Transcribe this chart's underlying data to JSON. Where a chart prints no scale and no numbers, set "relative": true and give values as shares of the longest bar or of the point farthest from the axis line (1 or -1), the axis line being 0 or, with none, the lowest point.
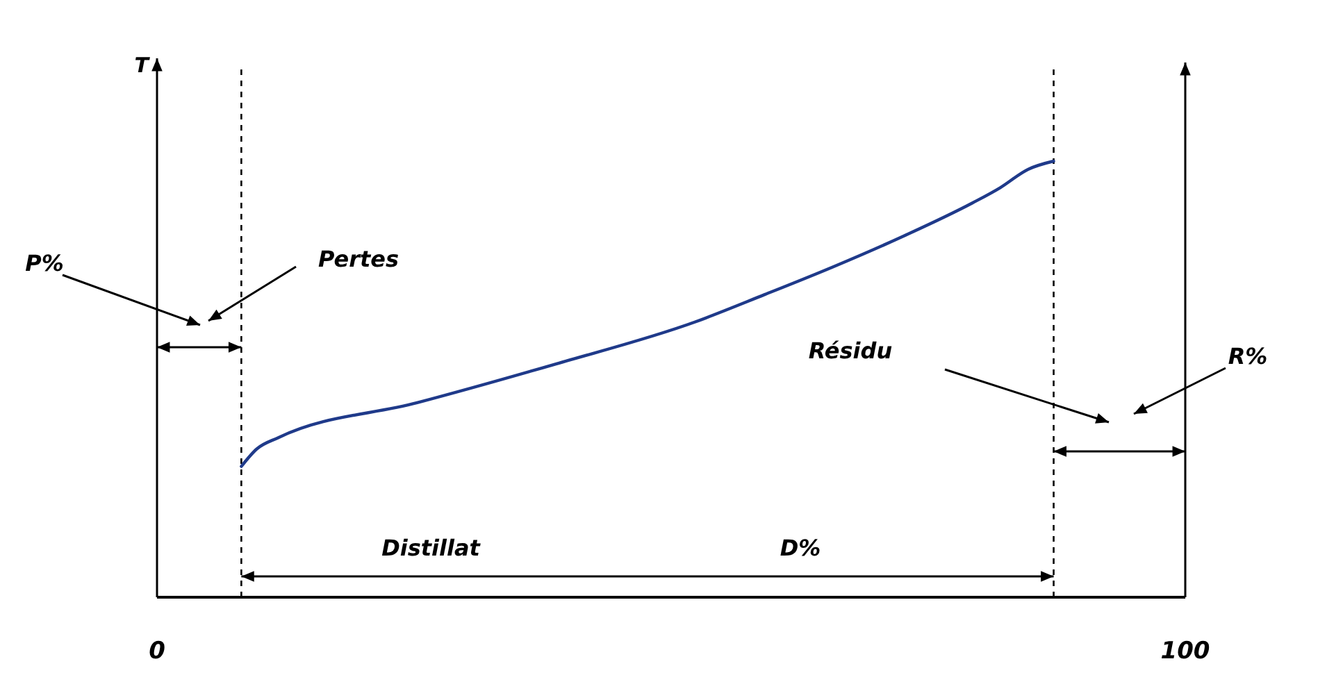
{
  "chart_data": {
    "type": "line",
    "ylabel": "T",
    "relative": true,
    "xlim": [
      0,
      100
    ],
    "xticks": [
      0,
      100
    ],
    "line_style": "solid",
    "marker": "none",
    "series": [
      {
        "color": "#1f3a8a",
        "x": [
          8.2,
          9.7,
          11.8,
          25.3,
          38.8,
          52.3,
          59.1,
          65.8,
          72.6,
          79.3,
          82.0,
          84.7,
          87.2
        ],
        "values": [
          0.3,
          0.34,
          0.366,
          0.446,
          0.535,
          0.631,
          0.694,
          0.758,
          0.828,
          0.904,
          0.939,
          0.981,
          1
        ]
      }
    ],
    "ref_lines": [
      {
        "axis": "x",
        "value": 8.2,
        "line_style": "dashed",
        "color": "#000000"
      },
      {
        "axis": "x",
        "value": 87.2,
        "line_style": "dashed",
        "color": "#000000"
      }
    ],
    "annotations": [
      "P%",
      "Pertes",
      "Résidu",
      "R%",
      "Distillat",
      "D%"
    ]
  }
}
